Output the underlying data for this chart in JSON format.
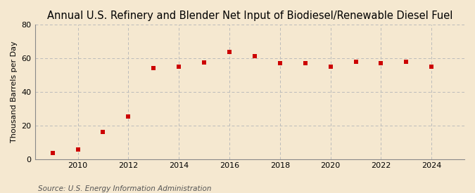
{
  "title": "Annual U.S. Refinery and Blender Net Input of Biodiesel/Renewable Diesel Fuel",
  "ylabel": "Thousand Barrels per Day",
  "source": "Source: U.S. Energy Information Administration",
  "background_color": "#f5e8d0",
  "plot_background_color": "#f5e8d0",
  "marker_color": "#cc0000",
  "marker": "s",
  "marker_size": 4,
  "grid_color": "#bbbbbb",
  "grid_style": "--",
  "years": [
    2009,
    2010,
    2011,
    2012,
    2013,
    2014,
    2015,
    2016,
    2017,
    2018,
    2019,
    2020,
    2021,
    2022,
    2023,
    2024
  ],
  "values": [
    3.5,
    5.5,
    16.0,
    25.5,
    54.0,
    55.0,
    57.5,
    64.0,
    61.5,
    57.0,
    57.0,
    55.0,
    58.0,
    57.0,
    58.0,
    55.0
  ],
  "xlim": [
    2008.3,
    2025.3
  ],
  "ylim": [
    0,
    80
  ],
  "yticks": [
    0,
    20,
    40,
    60,
    80
  ],
  "xticks": [
    2010,
    2012,
    2014,
    2016,
    2018,
    2020,
    2022,
    2024
  ],
  "title_fontsize": 10.5,
  "ylabel_fontsize": 8,
  "tick_fontsize": 8,
  "source_fontsize": 7.5,
  "title_fontweight": "normal"
}
